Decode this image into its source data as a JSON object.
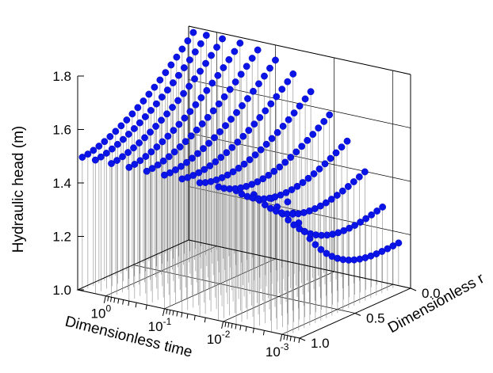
{
  "chart_data": {
    "type": "scatter",
    "subtype": "3d-stem-scatter",
    "xlabel": "Dimensionless time",
    "ylabel": "Dimensionless r",
    "zlabel": "Hydraulic head (m)",
    "x_scale": "log",
    "x_ticks": [
      1,
      0.1,
      0.01,
      0.001
    ],
    "x_tick_labels": [
      {
        "base": "10",
        "exp": "0"
      },
      {
        "base": "10",
        "exp": "-1"
      },
      {
        "base": "10",
        "exp": "-2"
      },
      {
        "base": "10",
        "exp": "-3"
      }
    ],
    "y_ticks": [
      0.0,
      0.5,
      1.0
    ],
    "y_tick_labels": [
      "0.0",
      "0.5",
      "1.0"
    ],
    "z_ticks": [
      1.0,
      1.2,
      1.4,
      1.6,
      1.8
    ],
    "z_tick_labels": [
      "1.0",
      "1.2",
      "1.4",
      "1.6",
      "1.8"
    ],
    "xlim": [
      3,
      0.0005
    ],
    "ylim": [
      1.0,
      0.0
    ],
    "zlim": [
      1.0,
      1.8
    ],
    "marker_color": "#0a14e6",
    "stem_color": "#8a8a8a",
    "sample_times": [
      0.0008,
      0.0015,
      0.003,
      0.006,
      0.012,
      0.025,
      0.05,
      0.1,
      0.2,
      0.4,
      0.8,
      1.5,
      2.5
    ],
    "sample_r": [
      0.0,
      0.05,
      0.1,
      0.15,
      0.2,
      0.25,
      0.3,
      0.35,
      0.4,
      0.45,
      0.5,
      0.55,
      0.6,
      0.65,
      0.7,
      0.75,
      0.8,
      0.85,
      0.9,
      0.95,
      1.0
    ],
    "head_model": {
      "initial_head": 1.5,
      "steady_head_at_r0": 1.78,
      "steady_head_at_r1": 1.5,
      "early_low_head": 1.11
    },
    "grid": true,
    "legend": "none"
  }
}
